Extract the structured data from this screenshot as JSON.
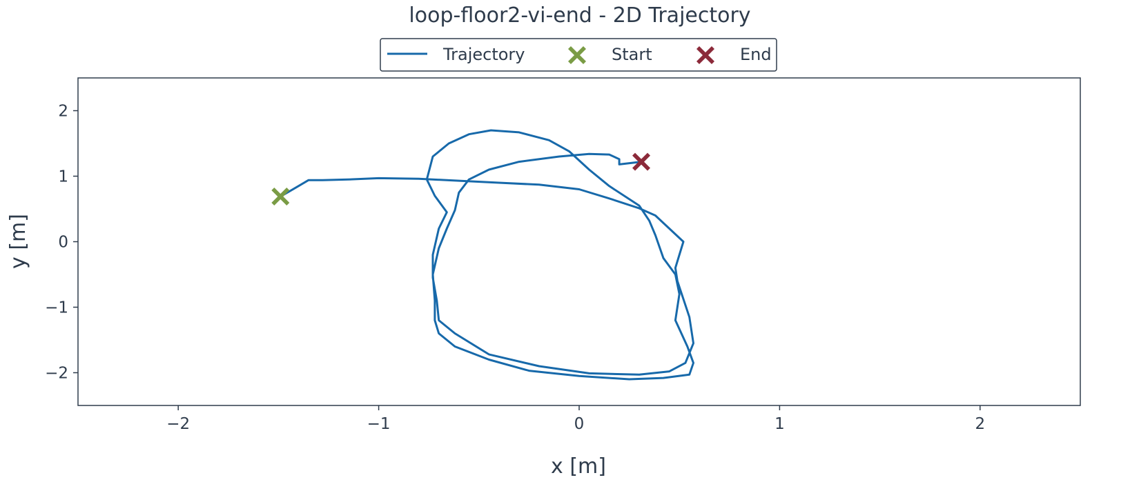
{
  "chart_data": {
    "type": "line",
    "title": "loop-floor2-vi-end - 2D Trajectory",
    "xlabel": "x [m]",
    "ylabel": "y [m]",
    "xlim": [
      -2.5,
      2.5
    ],
    "ylim": [
      -2.5,
      2.5
    ],
    "xticks": [
      -2,
      -1,
      0,
      1,
      2
    ],
    "yticks": [
      -2,
      -1,
      0,
      1,
      2
    ],
    "xtick_labels": [
      "−2",
      "−1",
      "0",
      "1",
      "2"
    ],
    "ytick_labels": [
      "−2",
      "−1",
      "0",
      "1",
      "2"
    ],
    "grid": false,
    "legend": {
      "position": "top-center",
      "entries": [
        "Trajectory",
        "Start",
        "End"
      ]
    },
    "colors": {
      "trajectory": "#1769aa",
      "start": "#7a9c45",
      "end": "#8c2a3a",
      "axes": "#2e3b4b"
    },
    "series": [
      {
        "name": "Trajectory",
        "points": [
          [
            -1.49,
            0.69
          ],
          [
            -1.45,
            0.76
          ],
          [
            -1.4,
            0.85
          ],
          [
            -1.35,
            0.94
          ],
          [
            -1.28,
            0.94
          ],
          [
            -1.15,
            0.95
          ],
          [
            -1.0,
            0.97
          ],
          [
            -0.8,
            0.96
          ],
          [
            -0.6,
            0.93
          ],
          [
            -0.4,
            0.9
          ],
          [
            -0.2,
            0.87
          ],
          [
            0.0,
            0.8
          ],
          [
            0.15,
            0.66
          ],
          [
            0.3,
            0.51
          ],
          [
            0.38,
            0.4
          ],
          [
            0.45,
            0.2
          ],
          [
            0.52,
            0.0
          ],
          [
            0.48,
            -0.4
          ],
          [
            0.49,
            -0.6
          ],
          [
            0.55,
            -1.15
          ],
          [
            0.57,
            -1.55
          ],
          [
            0.53,
            -1.85
          ],
          [
            0.45,
            -1.98
          ],
          [
            0.3,
            -2.03
          ],
          [
            0.05,
            -2.01
          ],
          [
            -0.2,
            -1.9
          ],
          [
            -0.45,
            -1.72
          ],
          [
            -0.62,
            -1.4
          ],
          [
            -0.7,
            -1.2
          ],
          [
            -0.71,
            -0.9
          ],
          [
            -0.73,
            -0.55
          ],
          [
            -0.73,
            -0.2
          ],
          [
            -0.7,
            0.2
          ],
          [
            -0.66,
            0.45
          ],
          [
            -0.72,
            0.7
          ],
          [
            -0.76,
            0.95
          ],
          [
            -0.73,
            1.3
          ],
          [
            -0.65,
            1.5
          ],
          [
            -0.55,
            1.64
          ],
          [
            -0.44,
            1.7
          ],
          [
            -0.3,
            1.67
          ],
          [
            -0.15,
            1.55
          ],
          [
            -0.05,
            1.38
          ],
          [
            0.05,
            1.1
          ],
          [
            0.15,
            0.85
          ],
          [
            0.3,
            0.55
          ],
          [
            0.35,
            0.32
          ],
          [
            0.38,
            0.1
          ],
          [
            0.42,
            -0.25
          ],
          [
            0.48,
            -0.5
          ],
          [
            0.5,
            -0.8
          ],
          [
            0.48,
            -1.2
          ],
          [
            0.54,
            -1.6
          ],
          [
            0.57,
            -1.85
          ],
          [
            0.55,
            -2.03
          ],
          [
            0.42,
            -2.08
          ],
          [
            0.25,
            -2.1
          ],
          [
            0.0,
            -2.05
          ],
          [
            -0.25,
            -1.97
          ],
          [
            -0.45,
            -1.8
          ],
          [
            -0.62,
            -1.6
          ],
          [
            -0.7,
            -1.4
          ],
          [
            -0.72,
            -1.2
          ],
          [
            -0.72,
            -0.9
          ],
          [
            -0.73,
            -0.5
          ],
          [
            -0.7,
            -0.1
          ],
          [
            -0.66,
            0.2
          ],
          [
            -0.62,
            0.48
          ],
          [
            -0.6,
            0.75
          ],
          [
            -0.55,
            0.95
          ],
          [
            -0.45,
            1.1
          ],
          [
            -0.3,
            1.22
          ],
          [
            -0.1,
            1.3
          ],
          [
            0.05,
            1.34
          ],
          [
            0.15,
            1.33
          ],
          [
            0.2,
            1.26
          ],
          [
            0.2,
            1.18
          ],
          [
            0.31,
            1.22
          ]
        ]
      }
    ],
    "start": [
      -1.49,
      0.69
    ],
    "end": [
      0.31,
      1.22
    ]
  }
}
